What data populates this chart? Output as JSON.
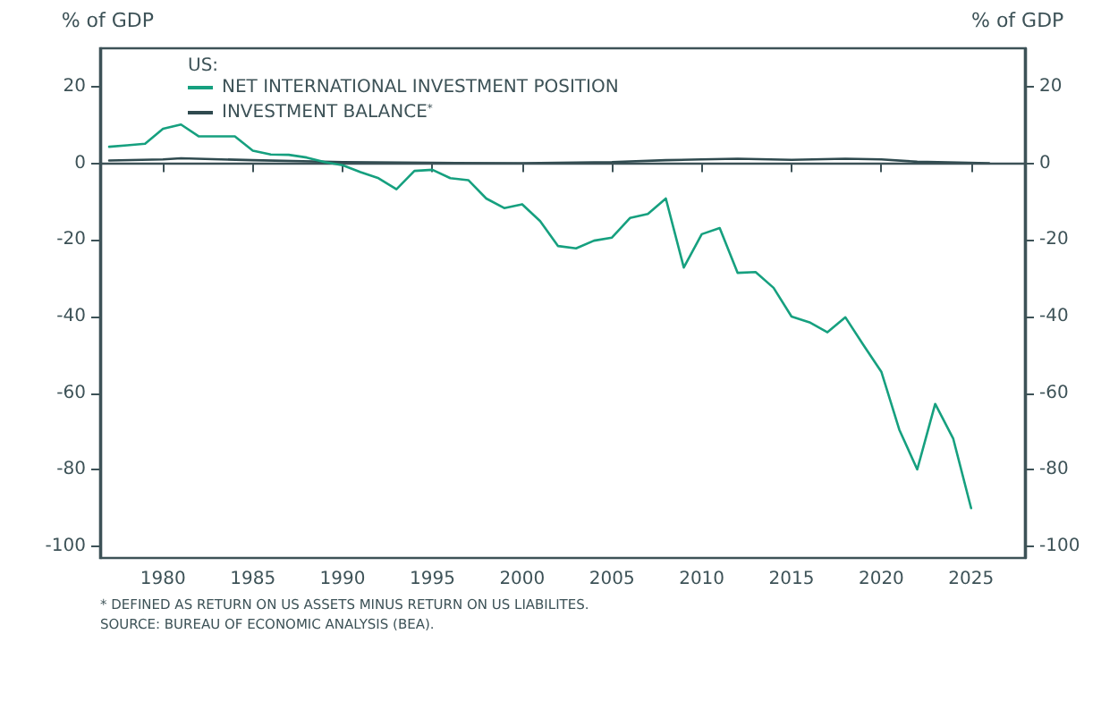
{
  "chart_data": {
    "type": "line",
    "ylabel": "% of GDP",
    "y2label": "% of GDP",
    "legend_title": "US:",
    "legend": "top left",
    "xlim": [
      1976.5,
      2028
    ],
    "xticks": [
      1980,
      1985,
      1990,
      1995,
      2000,
      2005,
      2010,
      2015,
      2020,
      2025
    ],
    "ylim": [
      -103,
      30
    ],
    "yticks": [
      -100,
      -80,
      -60,
      -40,
      -20,
      0,
      20
    ],
    "y2lim": [
      -103,
      30
    ],
    "y2ticks": [
      -100,
      -80,
      -60,
      -40,
      -20,
      0,
      20
    ],
    "grid": false,
    "marker": "none",
    "line_style": "solid",
    "ref_lines": [
      {
        "axis": "y",
        "value": 0,
        "color": "#3d5257"
      }
    ],
    "series": [
      {
        "name": "NET INTERNATIONAL INVESTMENT POSITION",
        "color": "#16a07f",
        "x": [
          1977,
          1978,
          1979,
          1980,
          1981,
          1982,
          1983,
          1984,
          1985,
          1986,
          1987,
          1988,
          1989,
          1990,
          1991,
          1992,
          1993,
          1994,
          1995,
          1996,
          1997,
          1998,
          1999,
          2000,
          2001,
          2002,
          2003,
          2004,
          2005,
          2006,
          2007,
          2008,
          2009,
          2010,
          2011,
          2012,
          2013,
          2014,
          2015,
          2016,
          2017,
          2018,
          2019,
          2020,
          2021,
          2022,
          2023,
          2024,
          2025
        ],
        "values": [
          4.3,
          4.7,
          5.1,
          9.0,
          10.1,
          7.0,
          7.0,
          7.0,
          3.3,
          2.3,
          2.2,
          1.5,
          0.3,
          -0.5,
          -2.3,
          -3.9,
          -6.8,
          -2.0,
          -1.7,
          -3.9,
          -4.4,
          -9.2,
          -11.7,
          -10.7,
          -15.1,
          -21.6,
          -22.2,
          -20.2,
          -19.4,
          -14.3,
          -13.2,
          -9.2,
          -27.2,
          -18.5,
          -16.9,
          -28.6,
          -28.4,
          -32.5,
          -40.0,
          -41.5,
          -44.1,
          -40.2,
          -47.4,
          -54.4,
          -69.5,
          -79.9,
          -62.8,
          -71.8,
          -90.0
        ]
      },
      {
        "name": "INVESTMENT BALANCE$^{*}$",
        "color": "#2f4a4f",
        "x": [
          1977,
          1980,
          1981,
          1985,
          1990,
          1995,
          2000,
          2005,
          2008,
          2010,
          2012,
          2015,
          2018,
          2020,
          2022,
          2026
        ],
        "values": [
          0.7,
          1.0,
          1.3,
          0.8,
          0.3,
          0.1,
          0.0,
          0.3,
          0.8,
          1.0,
          1.2,
          0.9,
          1.2,
          1.0,
          0.4,
          0.0
        ]
      }
    ],
    "annotations": [
      "* DEFINED AS RETURN ON US ASSETS MINUS RETURN ON US LIABILITES.",
      "SOURCE: BUREAU OF ECONOMIC ANALYSIS (BEA)."
    ]
  }
}
